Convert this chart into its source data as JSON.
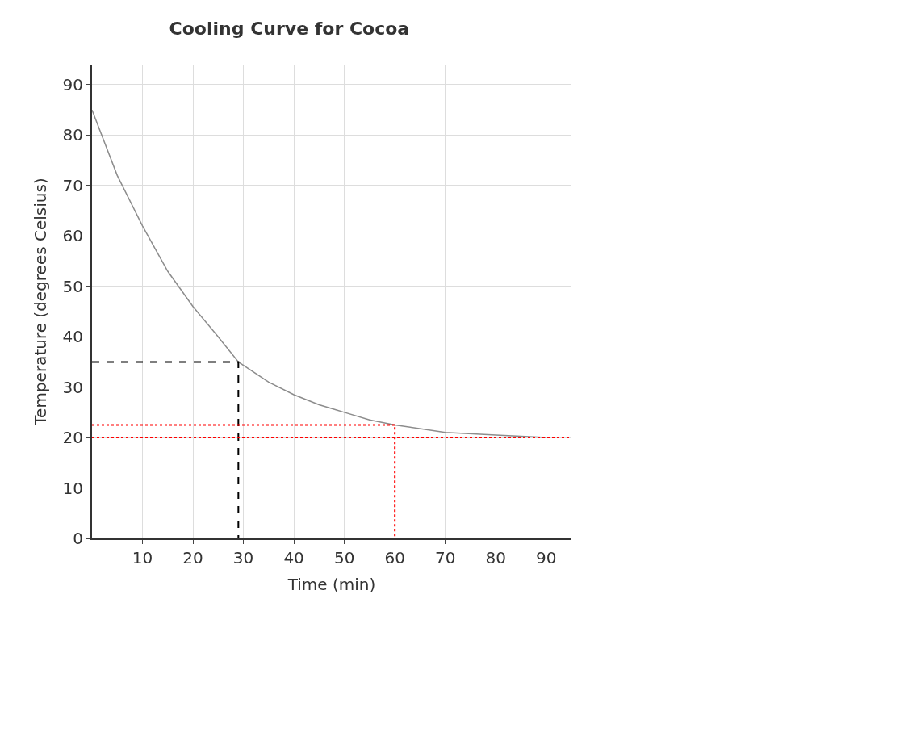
{
  "chart_data": {
    "type": "line",
    "title": "Cooling Curve for Cocoa",
    "xlabel": "Time (min)",
    "ylabel": "Temperature (degrees Celsius)",
    "xlim": [
      0,
      95
    ],
    "ylim": [
      0,
      94
    ],
    "xticks": [
      10,
      20,
      30,
      40,
      50,
      60,
      70,
      80,
      90
    ],
    "yticks": [
      0,
      10,
      20,
      30,
      40,
      50,
      60,
      70,
      80,
      90
    ],
    "grid": true,
    "marker": "none",
    "series": [
      {
        "color": "#8c8c8c",
        "line_style": "solid",
        "x": [
          0,
          5,
          10,
          15,
          20,
          25,
          29,
          35,
          40,
          45,
          50,
          55,
          60,
          70,
          80,
          90
        ],
        "values": [
          85,
          72,
          62,
          53,
          46,
          40,
          35,
          31,
          28.5,
          26.5,
          25,
          23.5,
          22.5,
          21,
          20.5,
          20
        ]
      },
      {
        "color": "#000000",
        "line_style": "dashed",
        "x": [
          0,
          29,
          29
        ],
        "values": [
          35,
          35,
          0
        ]
      },
      {
        "color": "#ff0000",
        "line_style": "dotted",
        "x": [
          0,
          60,
          60
        ],
        "values": [
          22.5,
          22.5,
          0
        ]
      }
    ],
    "ref_lines": [
      {
        "axis": "y",
        "value": 20,
        "color": "#ff0000",
        "line_style": "dotted"
      }
    ]
  }
}
